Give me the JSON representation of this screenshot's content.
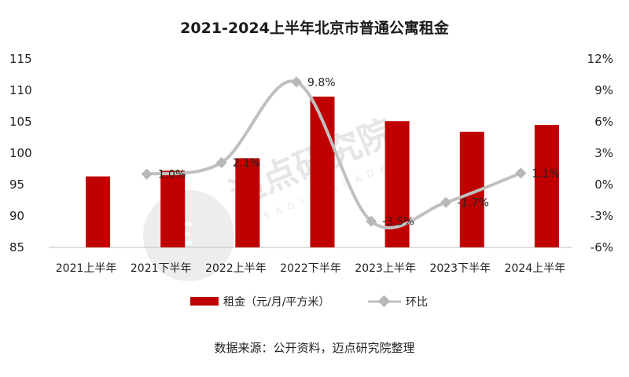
{
  "chart_data": {
    "type": "bar+line",
    "title": "2021-2024上半年北京市普通公寓租金",
    "categories": [
      "2021上半年",
      "2021下半年",
      "2022上半年",
      "2022下半年",
      "2023上半年",
      "2023下半年",
      "2024上半年"
    ],
    "series": [
      {
        "name": "租金（元/月/平方米）",
        "type": "bar",
        "axis": "left",
        "color": "#c00000",
        "values": [
          96.3,
          97.2,
          99.2,
          109.0,
          105.1,
          103.4,
          104.5
        ]
      },
      {
        "name": "环比",
        "type": "line",
        "axis": "right",
        "color": "#c0c0c0",
        "values": [
          null,
          1.0,
          2.1,
          9.8,
          -3.5,
          -1.7,
          1.1
        ],
        "labels": [
          "",
          "1.0%",
          "2.1%",
          "9.8%",
          "-3.5%",
          "-1.7%",
          "1.1%"
        ]
      }
    ],
    "left_axis": {
      "ylim": [
        85,
        115
      ],
      "ticks": [
        "85",
        "90",
        "95",
        "100",
        "105",
        "110",
        "115"
      ]
    },
    "right_axis": {
      "ylim": [
        -6,
        12
      ],
      "ticks": [
        "-6%",
        "-3%",
        "0%",
        "3%",
        "6%",
        "9%",
        "12%"
      ]
    },
    "grid": false,
    "legend": "bottom"
  },
  "source": "数据来源：公开资料，迈点研究院整理",
  "watermark": {
    "text": "迈点研究院",
    "sub": "MEADIN ACADEMY"
  }
}
